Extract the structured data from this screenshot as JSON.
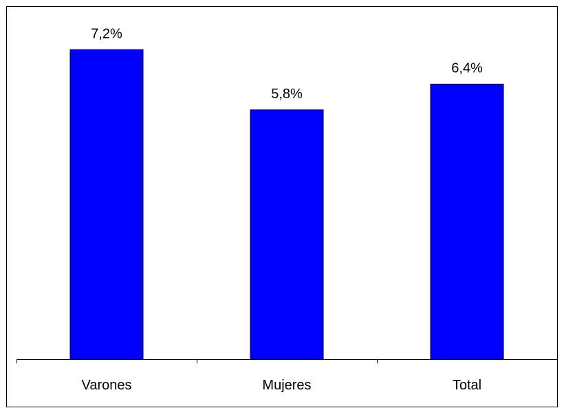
{
  "chart_data": {
    "type": "bar",
    "categories": [
      "Varones",
      "Mujeres",
      "Total"
    ],
    "values": [
      7.2,
      5.8,
      6.4
    ],
    "data_labels": [
      "7,2%",
      "5,8%",
      "6,4%"
    ],
    "title": "",
    "xlabel": "",
    "ylabel": "",
    "ylim": [
      0,
      8
    ],
    "grid": false,
    "legend": "none",
    "bar_color": "#0000FF",
    "bar_edge_color": "#000000"
  }
}
